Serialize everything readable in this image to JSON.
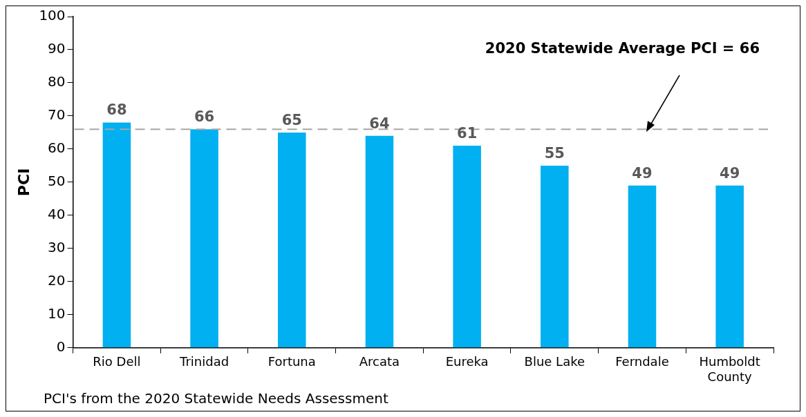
{
  "chart_data": {
    "type": "bar",
    "ylabel": "PCI",
    "categories": [
      "Rio Dell",
      "Trinidad",
      "Fortuna",
      "Arcata",
      "Eureka",
      "Blue Lake",
      "Ferndale",
      "Humboldt County"
    ],
    "values": [
      68,
      66,
      65,
      64,
      61,
      55,
      49,
      49
    ],
    "color": "#00b0f0",
    "ylim": [
      0,
      100
    ],
    "yticks": [
      0,
      10,
      20,
      30,
      40,
      50,
      60,
      70,
      80,
      90,
      100
    ],
    "grid": false,
    "legend": false,
    "data_labels": true,
    "ref_lines": [
      {
        "axis": "y",
        "value": 66,
        "label": "2020 Statewide Average PCI = 66",
        "color": "#a6a6a6",
        "line_style": "dashed"
      }
    ],
    "annotations": [
      "PCI's from the 2020 Statewide Needs Assessment"
    ]
  }
}
